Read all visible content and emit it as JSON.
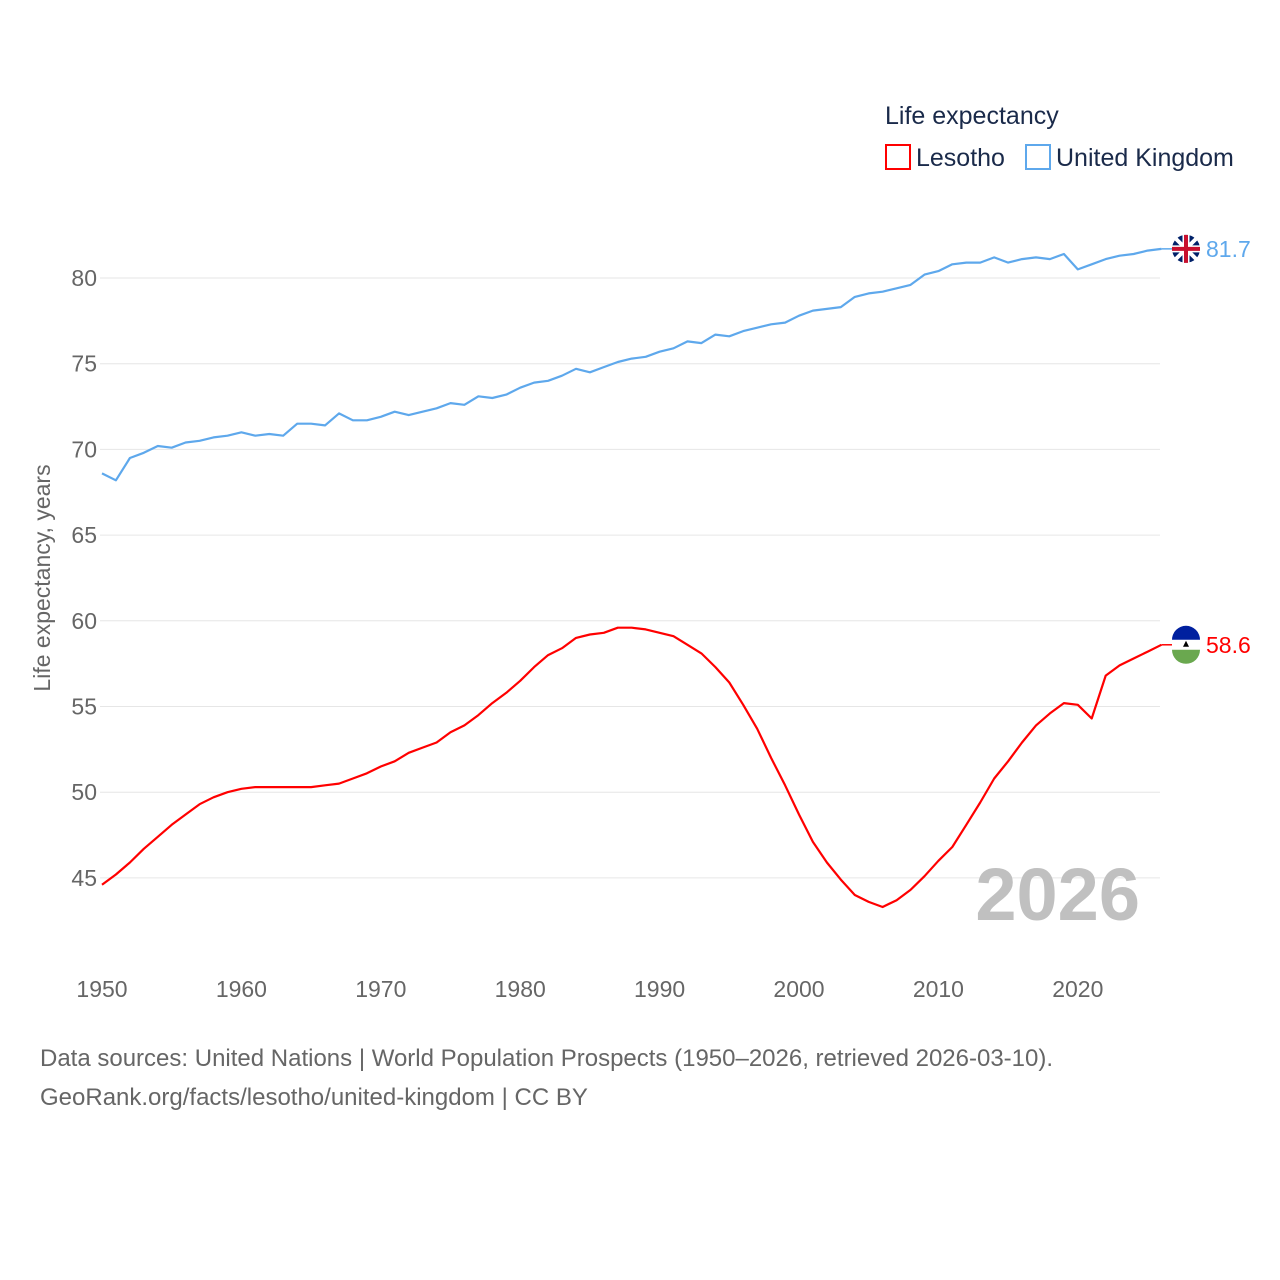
{
  "chart_data": {
    "type": "line",
    "title": "Life expectancy",
    "ylabel": "Life expectancy, years",
    "xlabel": "",
    "xlim": [
      1950,
      2026
    ],
    "ylim": [
      42,
      83
    ],
    "grid": true,
    "legend_placement": "top-right",
    "x_ticks": [
      1950,
      1960,
      1970,
      1980,
      1990,
      2000,
      2010,
      2020
    ],
    "y_ticks": [
      45,
      50,
      55,
      60,
      65,
      70,
      75,
      80
    ],
    "watermark": "2026",
    "x_start": 1950,
    "series": [
      {
        "name": "Lesotho",
        "color": "#ff0000",
        "end_label": "58.6",
        "flag": "lesotho-flag",
        "values": [
          44.6,
          45.2,
          45.9,
          46.7,
          47.4,
          48.1,
          48.7,
          49.3,
          49.7,
          50.0,
          50.2,
          50.3,
          50.3,
          50.3,
          50.3,
          50.3,
          50.4,
          50.5,
          50.8,
          51.1,
          51.5,
          51.8,
          52.3,
          52.6,
          52.9,
          53.5,
          53.9,
          54.5,
          55.2,
          55.8,
          56.5,
          57.3,
          58.0,
          58.4,
          59.0,
          59.2,
          59.3,
          59.6,
          59.6,
          59.5,
          59.3,
          59.1,
          58.6,
          58.1,
          57.3,
          56.4,
          55.1,
          53.7,
          52.0,
          50.4,
          48.7,
          47.1,
          45.9,
          44.9,
          44.0,
          43.6,
          43.3,
          43.7,
          44.3,
          45.1,
          46.0,
          46.8,
          48.1,
          49.4,
          50.8,
          51.8,
          52.9,
          53.9,
          54.6,
          55.2,
          55.1,
          54.3,
          56.8,
          57.4,
          57.8,
          58.2,
          58.6
        ]
      },
      {
        "name": "United Kingdom",
        "color": "#5ea8ec",
        "end_label": "81.7",
        "flag": "united-kingdom-flag",
        "values": [
          68.6,
          68.2,
          69.5,
          69.8,
          70.2,
          70.1,
          70.4,
          70.5,
          70.7,
          70.8,
          71.0,
          70.8,
          70.9,
          70.8,
          71.5,
          71.5,
          71.4,
          72.1,
          71.7,
          71.7,
          71.9,
          72.2,
          72.0,
          72.2,
          72.4,
          72.7,
          72.6,
          73.1,
          73.0,
          73.2,
          73.6,
          73.9,
          74.0,
          74.3,
          74.7,
          74.5,
          74.8,
          75.1,
          75.3,
          75.4,
          75.7,
          75.9,
          76.3,
          76.2,
          76.7,
          76.6,
          76.9,
          77.1,
          77.3,
          77.4,
          77.8,
          78.1,
          78.2,
          78.3,
          78.9,
          79.1,
          79.2,
          79.4,
          79.6,
          80.2,
          80.4,
          80.8,
          80.9,
          80.9,
          81.2,
          80.9,
          81.1,
          81.2,
          81.1,
          81.4,
          80.5,
          80.8,
          81.1,
          81.3,
          81.4,
          81.6,
          81.7
        ]
      }
    ]
  },
  "footer": {
    "line1": "Data sources: United Nations | World Population Prospects (1950–2026, retrieved 2026-03-10).",
    "line2": "GeoRank.org/facts/lesotho/united-kingdom | CC BY"
  }
}
